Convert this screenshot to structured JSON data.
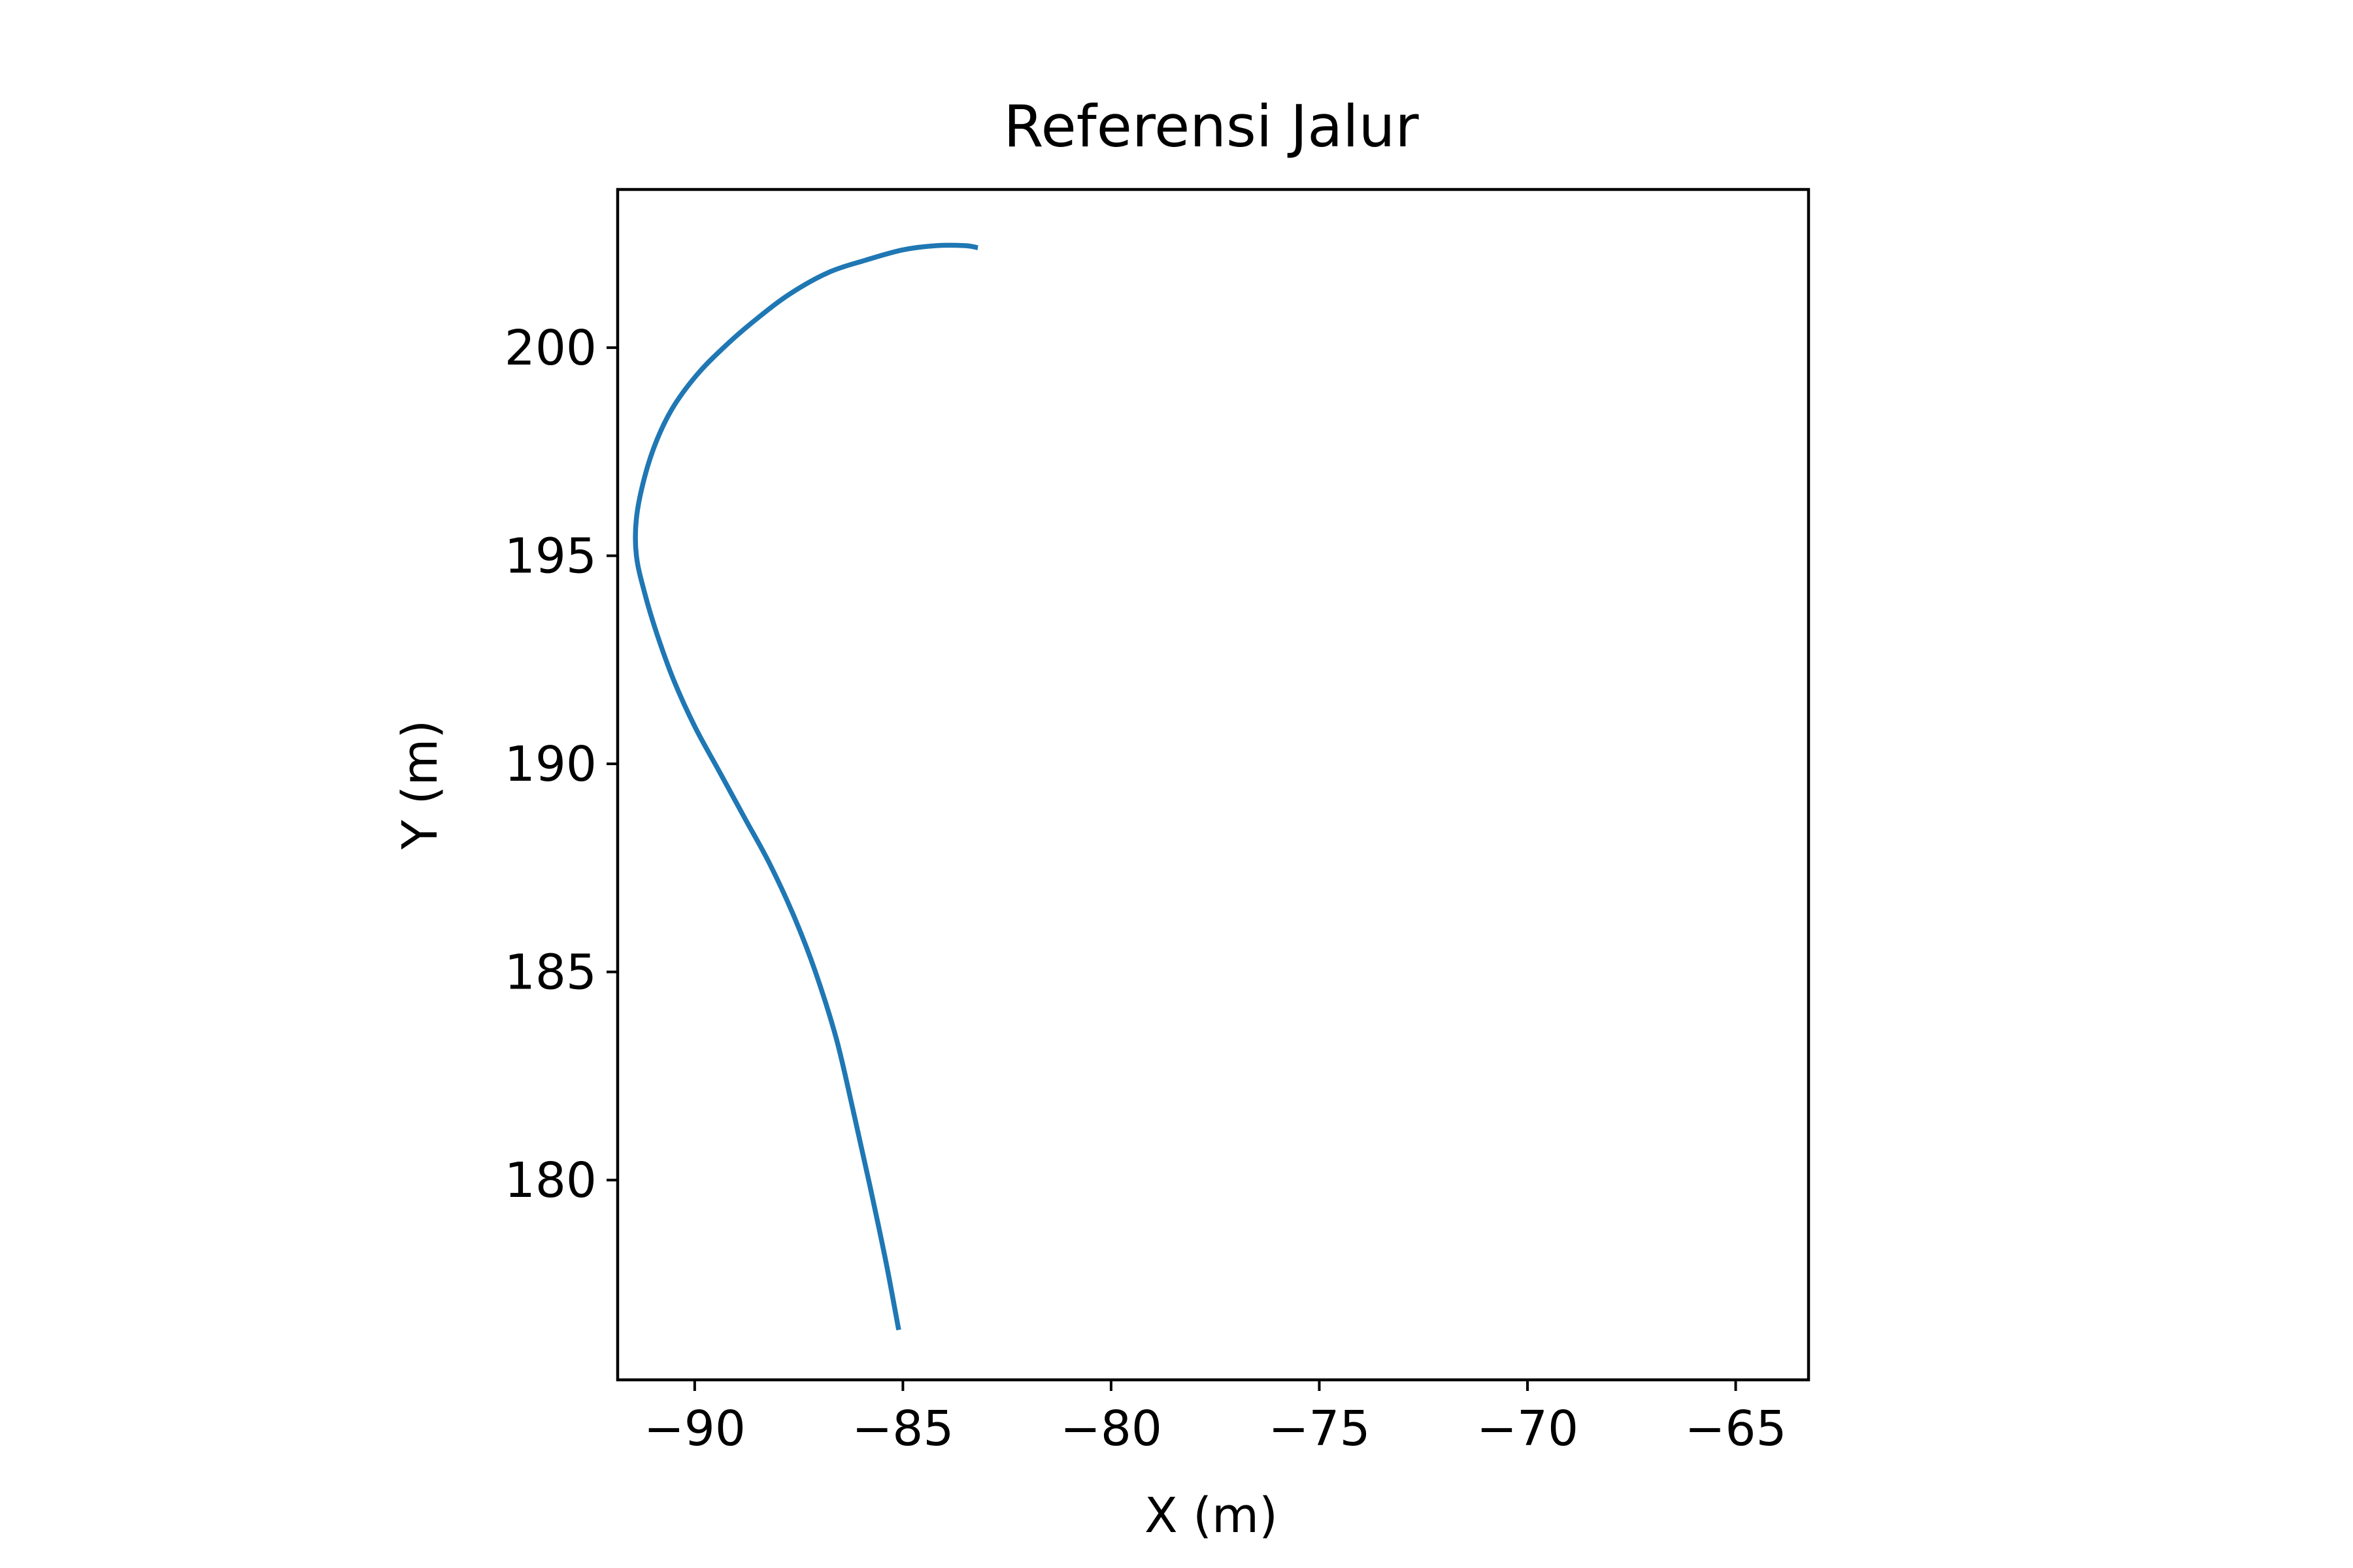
{
  "chart_data": {
    "type": "line",
    "title": "Referensi Jalur",
    "xlabel": "X (m)",
    "ylabel": "Y (m)",
    "xlim": [
      -91.85,
      -63.25
    ],
    "ylim": [
      175.2,
      203.8
    ],
    "x_ticks": [
      -90,
      -85,
      -80,
      -75,
      -70,
      -65
    ],
    "x_tick_labels": [
      "−90",
      "−85",
      "−80",
      "−75",
      "−70",
      "−65"
    ],
    "y_ticks": [
      180,
      185,
      190,
      195,
      200
    ],
    "y_tick_labels": [
      "180",
      "185",
      "190",
      "195",
      "200"
    ],
    "grid": false,
    "line_color": "#1f77b4",
    "series": [
      {
        "x": [
          -85.1,
          -85.4,
          -85.8,
          -86.2,
          -86.6,
          -87.1,
          -87.6,
          -88.2,
          -88.8,
          -89.4,
          -90.0,
          -90.5,
          -90.9,
          -91.2,
          -91.4,
          -91.4,
          -91.2,
          -90.9,
          -90.5,
          -89.9,
          -89.2,
          -88.5,
          -87.7,
          -86.8,
          -85.9,
          -85.0,
          -84.2,
          -83.5,
          -83.2
        ],
        "y": [
          176.4,
          178.0,
          179.9,
          181.7,
          183.4,
          185.0,
          186.3,
          187.6,
          188.7,
          189.8,
          190.9,
          192.0,
          193.1,
          194.1,
          195.0,
          195.9,
          196.9,
          197.8,
          198.6,
          199.4,
          200.1,
          200.7,
          201.3,
          201.8,
          202.1,
          202.35,
          202.45,
          202.45,
          202.4
        ]
      }
    ]
  }
}
